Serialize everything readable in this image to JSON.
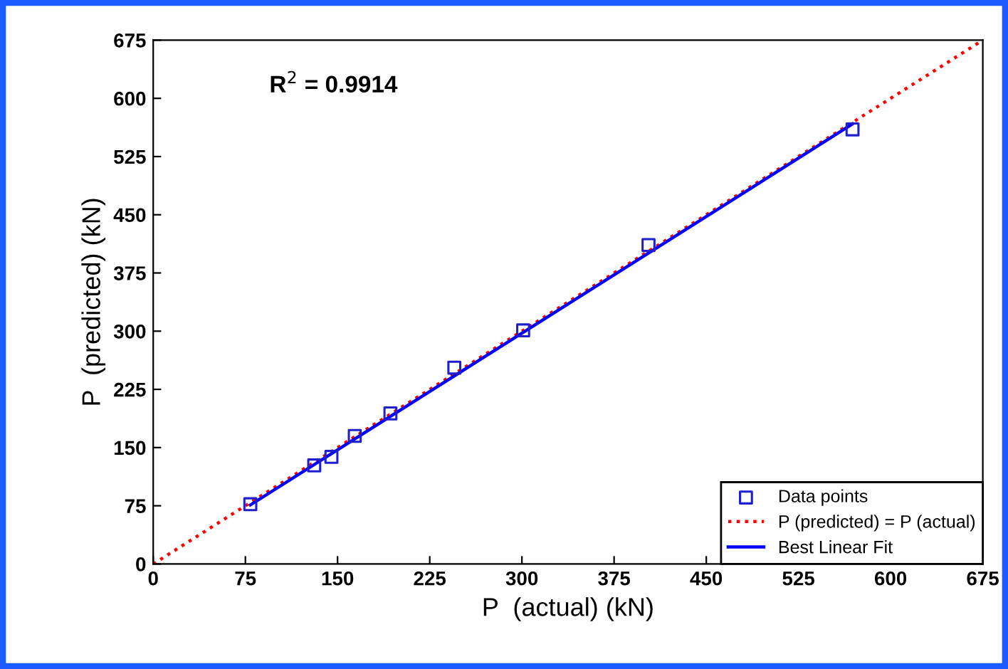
{
  "chart_data": {
    "type": "scatter",
    "xlabel": "P  (actual) (kN)",
    "ylabel": "P  (predicted) (kN)",
    "xlim": [
      0,
      675
    ],
    "ylim": [
      0,
      675
    ],
    "xticks": [
      0,
      75,
      150,
      225,
      300,
      375,
      450,
      525,
      600,
      675
    ],
    "yticks": [
      0,
      75,
      150,
      225,
      300,
      375,
      450,
      525,
      600,
      675
    ],
    "grid": false,
    "legend": "bottom right",
    "annotations": [
      "R$^{2}$ = 0.9914"
    ],
    "series": [
      {
        "name": "Data points",
        "color": "#1f1fd0",
        "marker": "square",
        "x": [
          79,
          131,
          145,
          164,
          193,
          245,
          301,
          403,
          569
        ],
        "values": [
          77,
          127,
          138,
          165,
          194,
          253,
          301,
          411,
          560
        ]
      },
      {
        "name": "P (predicted) = P (actual)",
        "color": "#ff0000",
        "type": "line",
        "line_style": "dotted",
        "x": [
          0,
          675
        ],
        "values": [
          0,
          675
        ]
      },
      {
        "name": "Best Linear Fit",
        "color": "#0000ff",
        "type": "line",
        "line_style": "solid",
        "x": [
          79,
          569
        ],
        "values": [
          76,
          567
        ]
      }
    ]
  }
}
